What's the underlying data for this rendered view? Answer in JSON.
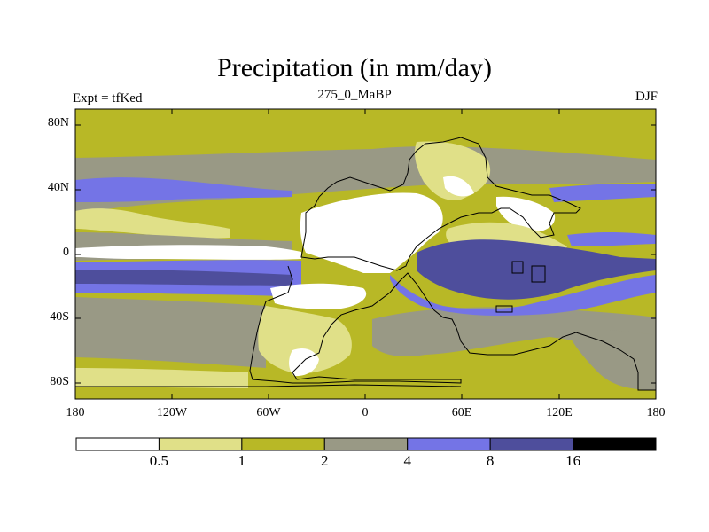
{
  "title": "Precipitation (in mm/day)",
  "subtitle_left": "Expt = tfKed",
  "subtitle_center": "275_0_MaBP",
  "subtitle_right": "DJF",
  "lat_labels": [
    "80N",
    "40N",
    "0",
    "40S",
    "80S"
  ],
  "lon_labels": [
    "180",
    "120W",
    "60W",
    "0",
    "60E",
    "120E",
    "180"
  ],
  "colorbar": {
    "colors": [
      "#ffffff",
      "#e0e088",
      "#b8b826",
      "#999985",
      "#7474e6",
      "#4e4e9c",
      "#000000"
    ],
    "labels": [
      "0.5",
      "1",
      "2",
      "4",
      "8",
      "16"
    ]
  },
  "palette": {
    "dry": "#ffffff",
    "low": "#e0e088",
    "mid": "#b8b826",
    "moderate": "#999985",
    "wet": "#7474e6",
    "verywet": "#4e4e9c"
  }
}
